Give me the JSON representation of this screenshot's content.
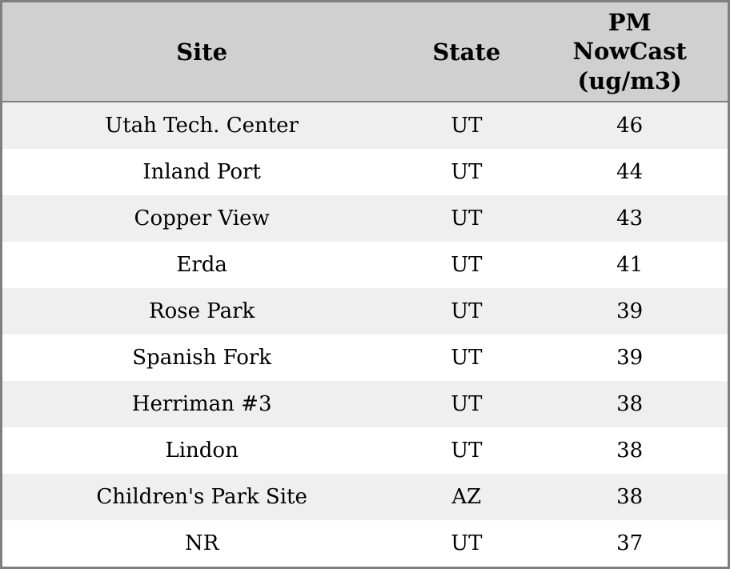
{
  "colors": {
    "border": "#7f7f7f",
    "header_bg": "#d0d0d0",
    "stripe_bg": "#efefef",
    "row_bg": "#ffffff",
    "text": "#000000"
  },
  "chart_data": {
    "type": "table",
    "columns": [
      "Site",
      "State",
      "PM NowCast (ug/m3)"
    ],
    "rows": [
      [
        "Utah Tech. Center",
        "UT",
        46
      ],
      [
        "Inland Port",
        "UT",
        44
      ],
      [
        "Copper View",
        "UT",
        43
      ],
      [
        "Erda",
        "UT",
        41
      ],
      [
        "Rose Park",
        "UT",
        39
      ],
      [
        "Spanish Fork",
        "UT",
        39
      ],
      [
        "Herriman #3",
        "UT",
        38
      ],
      [
        "Lindon",
        "UT",
        38
      ],
      [
        "Children's Park Site",
        "AZ",
        38
      ],
      [
        "NR",
        "UT",
        37
      ]
    ]
  }
}
